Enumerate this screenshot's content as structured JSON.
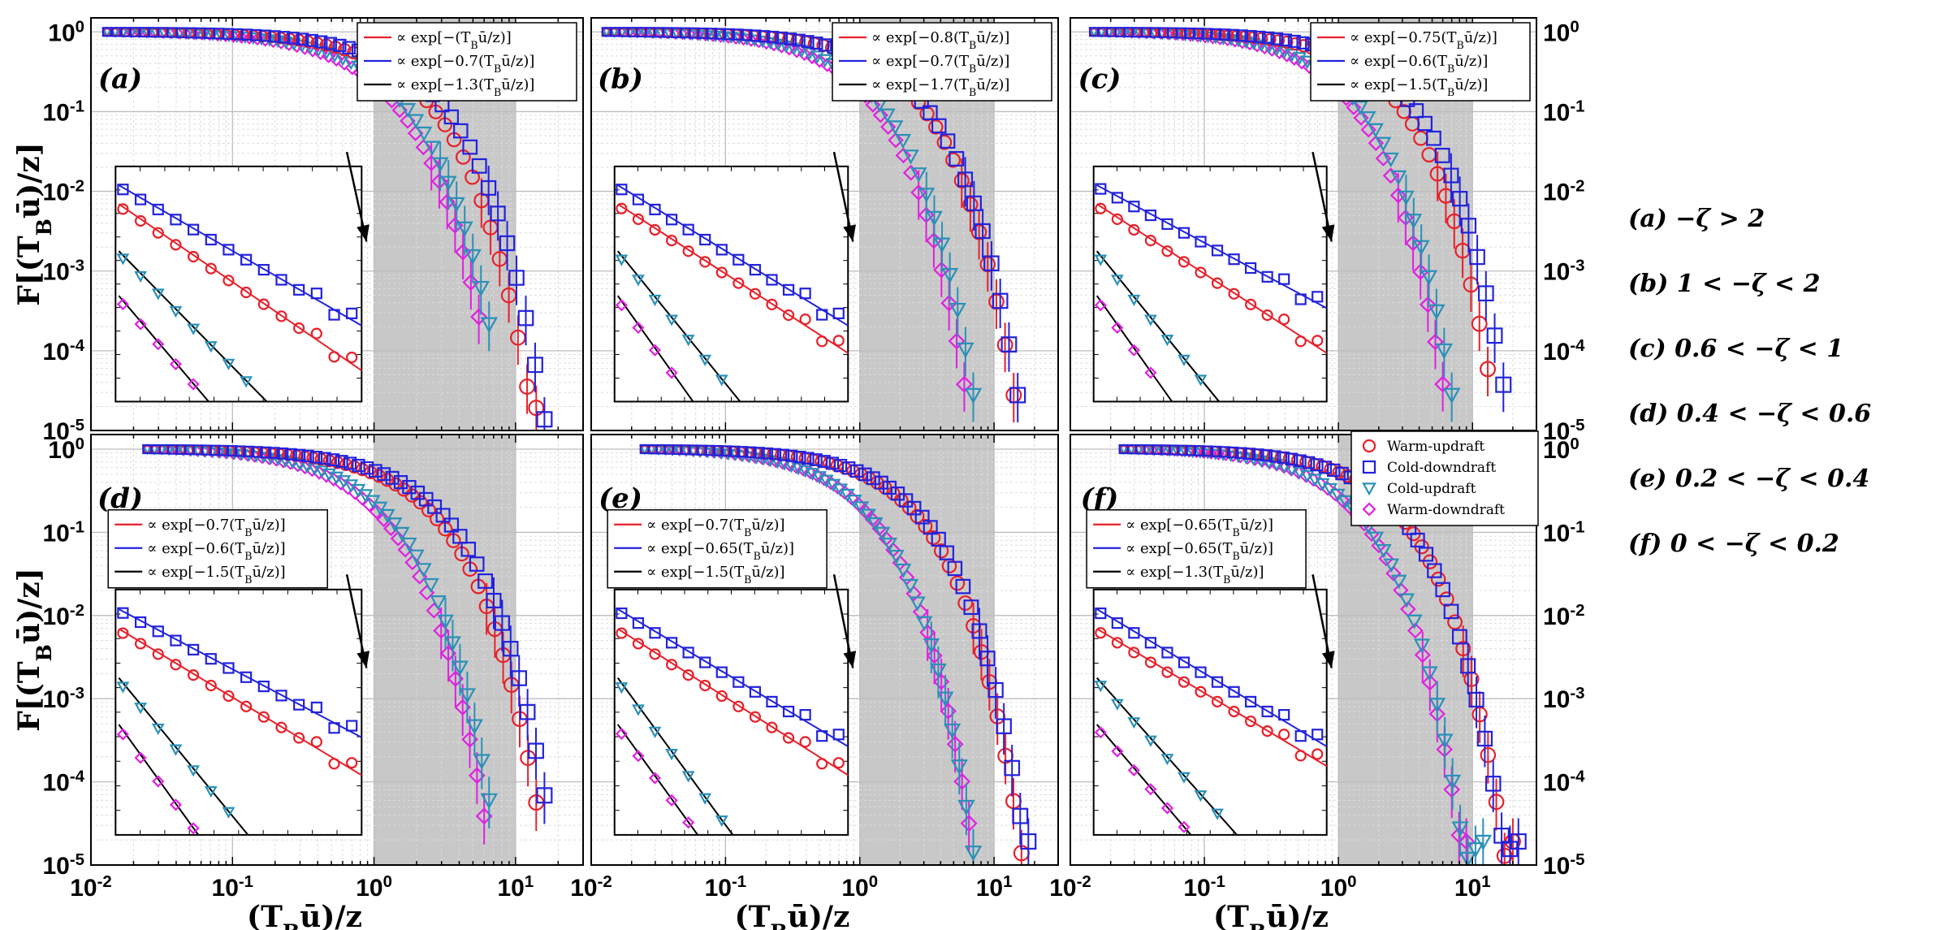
{
  "axis": {
    "xlabel": "(T_Bū)/z",
    "ylabel": "F[(T_Bū)/z]",
    "x_tick_labels": [
      "10-2",
      "10-1",
      "100",
      "101"
    ],
    "y_tick_labels": [
      "10-5",
      "10-4",
      "10-3",
      "10-2",
      "10-1",
      "100"
    ]
  },
  "chart_data": {
    "type": "scatter",
    "title": "",
    "xlabel": "(T_Bū)/z",
    "ylabel": "F[(T_Bū)/z]",
    "xscale": "log",
    "yscale": "log",
    "xlim": [
      0.01,
      30
    ],
    "ylim": [
      1e-05,
      1.5
    ],
    "shaded_region_x": [
      1,
      10
    ],
    "legend_placement": "top-right of panel (f)",
    "series": [
      {
        "name": "Warm-updraft",
        "marker": "circle",
        "color": "#e8202a"
      },
      {
        "name": "Cold-downdraft",
        "marker": "square",
        "color": "#2222dd"
      },
      {
        "name": "Cold-updraft",
        "marker": "triangle-down",
        "color": "#2a90b8"
      },
      {
        "name": "Warm-downdraft",
        "marker": "diamond",
        "color": "#e020e0"
      }
    ],
    "panels": [
      {
        "label": "(a)",
        "condition": "(a)  −ζ > 2",
        "xstart": 0.013,
        "fit_legend": [
          "∝ exp[−(T_Bū/z)]",
          "∝ exp[−0.7(T_Bū/z)]",
          "∝ exp[−1.3(T_Bū/z)]"
        ],
        "decay": {
          "Warm-updraft": 0.85,
          "Cold-downdraft": 0.7,
          "Cold-updraft": 1.3,
          "Warm-downdraft": 1.5
        },
        "xmax": {
          "Warm-updraft": 14,
          "Cold-downdraft": 16,
          "Cold-updraft": 6.5,
          "Warm-downdraft": 5.5
        }
      },
      {
        "label": "(b)",
        "condition": "(b)  1 < −ζ < 2",
        "xstart": 0.013,
        "fit_legend": [
          "∝ exp[−0.8(T_Bū/z)]",
          "∝ exp[−0.7(T_Bū/z)]",
          "∝ exp[−1.7(T_Bū/z)]"
        ],
        "decay": {
          "Warm-updraft": 0.75,
          "Cold-downdraft": 0.7,
          "Cold-updraft": 1.5,
          "Warm-downdraft": 1.7
        },
        "xmax": {
          "Warm-updraft": 14,
          "Cold-downdraft": 15,
          "Cold-updraft": 7,
          "Warm-downdraft": 6
        }
      },
      {
        "label": "(c)",
        "condition": "(c)  0.6 < −ζ < 1",
        "xstart": 0.015,
        "fit_legend": [
          "∝ exp[−0.75(T_Bū/z)]",
          "∝ exp[−0.6(T_Bū/z)]",
          "∝ exp[−1.5(T_Bū/z)]"
        ],
        "decay": {
          "Warm-updraft": 0.75,
          "Cold-downdraft": 0.6,
          "Cold-updraft": 1.5,
          "Warm-downdraft": 1.7
        },
        "xmax": {
          "Warm-updraft": 13,
          "Cold-downdraft": 17,
          "Cold-updraft": 7,
          "Warm-downdraft": 6
        }
      },
      {
        "label": "(d)",
        "condition": "(d)  0.4 < −ζ < 0.6",
        "xstart": 0.025,
        "fit_legend": [
          "∝ exp[−0.7(T_Bū/z)]",
          "∝ exp[−0.6(T_Bū/z)]",
          "∝ exp[−1.5(T_Bū/z)]"
        ],
        "decay": {
          "Warm-updraft": 0.7,
          "Cold-downdraft": 0.6,
          "Cold-updraft": 1.5,
          "Warm-downdraft": 1.7
        },
        "xmax": {
          "Warm-updraft": 14,
          "Cold-downdraft": 16,
          "Cold-updraft": 6.5,
          "Warm-downdraft": 6
        }
      },
      {
        "label": "(e)",
        "condition": "(e)  0.2 < −ζ < 0.4",
        "xstart": 0.025,
        "fit_legend": [
          "∝ exp[−0.7(T_Bū/z)]",
          "∝ exp[−0.65(T_Bū/z)]",
          "∝ exp[−1.5(T_Bū/z)]"
        ],
        "decay": {
          "Warm-updraft": 0.7,
          "Cold-downdraft": 0.65,
          "Cold-updraft": 1.6,
          "Warm-downdraft": 1.6
        },
        "xmax": {
          "Warm-updraft": 16,
          "Cold-downdraft": 18,
          "Cold-updraft": 7,
          "Warm-downdraft": 6.5
        }
      },
      {
        "label": "(f)",
        "condition": "(f)  0 < −ζ < 0.2",
        "xstart": 0.025,
        "fit_legend": [
          "∝ exp[−0.65(T_Bū/z)]",
          "∝ exp[−0.65(T_Bū/z)]",
          "∝ exp[−1.3(T_Bū/z)]"
        ],
        "decay": {
          "Warm-updraft": 0.65,
          "Cold-downdraft": 0.65,
          "Cold-updraft": 1.3,
          "Warm-downdraft": 1.35
        },
        "xmax": {
          "Warm-updraft": 20,
          "Cold-downdraft": 22,
          "Cold-updraft": 12,
          "Warm-downdraft": 9
        }
      }
    ]
  }
}
